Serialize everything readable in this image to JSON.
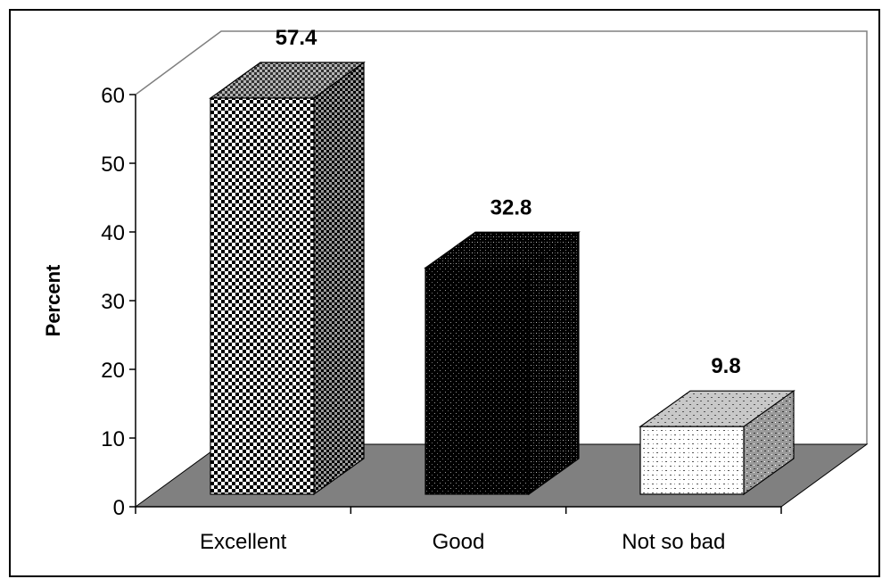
{
  "chart_data": {
    "type": "bar",
    "categories": [
      "Excellent",
      "Good",
      "Not so bad"
    ],
    "values": [
      57.4,
      32.8,
      9.8
    ],
    "data_labels": [
      "57.4",
      "32.8",
      "9.8"
    ],
    "ylabel": "Percent",
    "xlabel": "",
    "title": "",
    "ylim": [
      0,
      60
    ],
    "yticks": [
      "0",
      "10",
      "20",
      "30",
      "40",
      "50",
      "60"
    ],
    "style": "3d-column",
    "gridlines": false,
    "legend": "none"
  },
  "colors": {
    "floor": "#808080",
    "wall_line": "#808080",
    "axis": "#000000"
  }
}
